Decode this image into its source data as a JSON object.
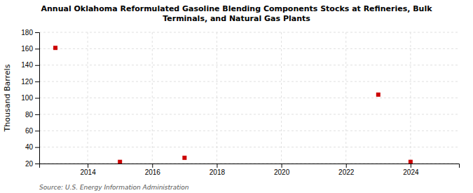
{
  "chart_data": {
    "type": "scatter",
    "title": "Annual Oklahoma Reformulated Gasoline Blending Components Stocks at Refineries, Bulk\nTerminals, and Natural Gas Plants",
    "ylabel": "Thousand Barrels",
    "source": "Source: U.S. Energy Information Administration",
    "x": [
      2013,
      2015,
      2017,
      2023,
      2024
    ],
    "values": [
      161,
      22,
      27,
      104,
      22
    ],
    "color": "#cc0000",
    "marker": "square",
    "xlim": [
      2012.5,
      2025.5
    ],
    "xticks": [
      2014,
      2016,
      2018,
      2020,
      2022,
      2024
    ],
    "ylim": [
      20,
      180
    ],
    "yticks": [
      20,
      40,
      60,
      80,
      100,
      120,
      140,
      160,
      180
    ],
    "grid": true
  }
}
